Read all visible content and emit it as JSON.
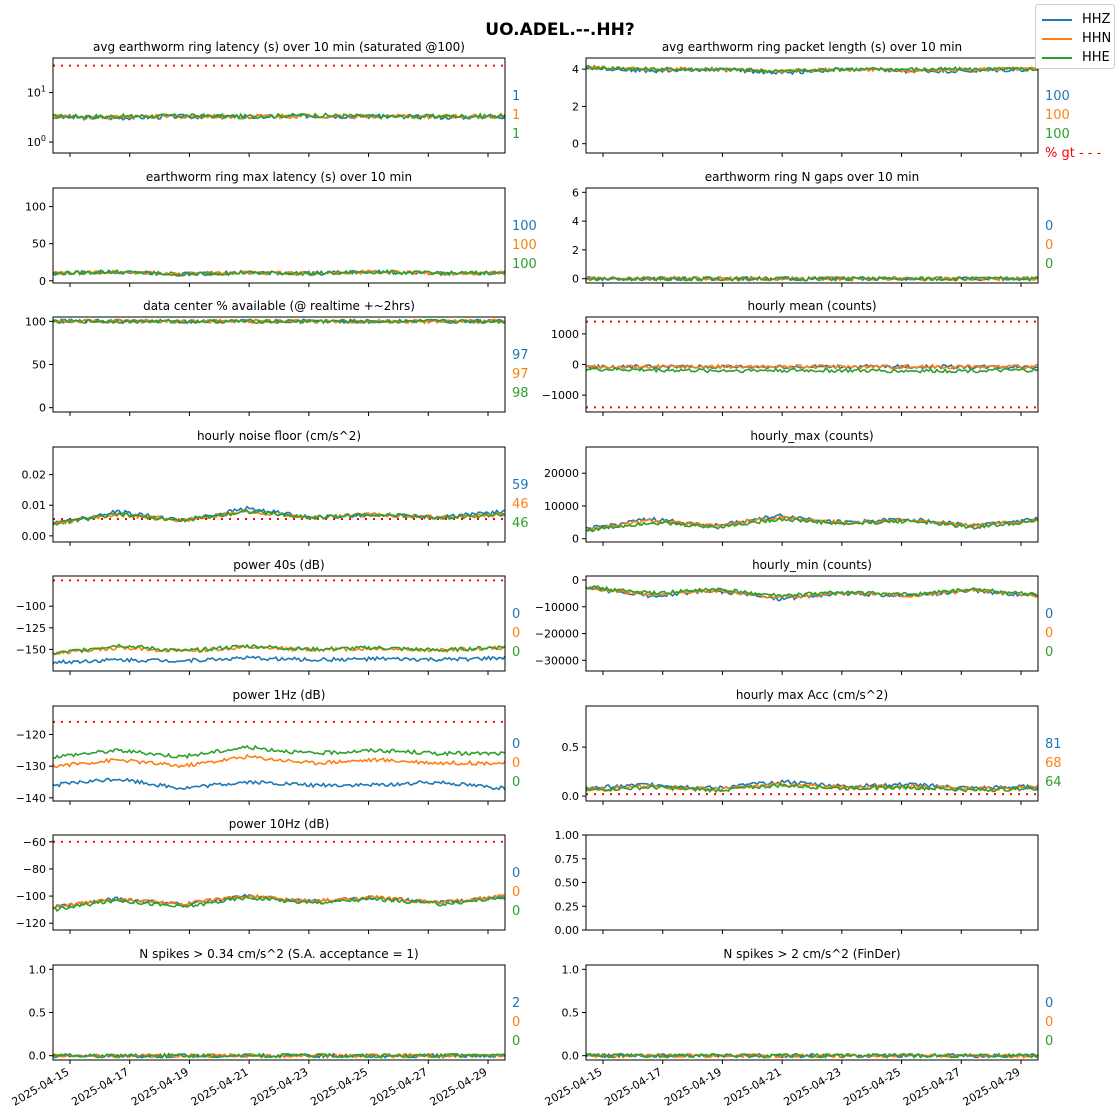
{
  "figure_title": "UO.ADEL.--.HH?",
  "legend": [
    {
      "label": "HHZ",
      "color": "#1f77b4"
    },
    {
      "label": "HHN",
      "color": "#ff7f0e"
    },
    {
      "label": "HHE",
      "color": "#2ca02c"
    }
  ],
  "x_tick_labels": [
    "2025-04-15",
    "2025-04-17",
    "2025-04-19",
    "2025-04-21",
    "2025-04-23",
    "2025-04-25",
    "2025-04-27",
    "2025-04-29"
  ],
  "pct_gt_label": "% gt - - -",
  "chart_data": [
    {
      "type": "line",
      "title": "avg earthworm ring latency (s)   over 10 min (saturated @100)",
      "yscale": "log",
      "ylim": [
        0.6,
        50
      ],
      "yticks": [
        1,
        10
      ],
      "ytick_labels": [
        "10^0",
        "10^1"
      ],
      "threshold": 35,
      "pct": [
        "1",
        "1",
        "1"
      ],
      "series": [
        {
          "name": "HHZ",
          "values": [
            3.2,
            3.1,
            3.3,
            3.2,
            3.4,
            3.3,
            3.2,
            3.3
          ]
        },
        {
          "name": "HHN",
          "values": [
            3.3,
            3.2,
            3.3,
            3.3,
            3.4,
            3.3,
            3.3,
            3.3
          ]
        },
        {
          "name": "HHE",
          "values": [
            3.3,
            3.3,
            3.4,
            3.3,
            3.5,
            3.3,
            3.3,
            3.4
          ]
        }
      ]
    },
    {
      "type": "line",
      "title": "avg earthworm ring packet length (s)   over 10 min",
      "ylim": [
        -0.5,
        4.6
      ],
      "yticks": [
        0,
        2,
        4
      ],
      "ytick_labels": [
        "0",
        "2",
        "4"
      ],
      "threshold": null,
      "pct": [
        "100",
        "100",
        "100"
      ],
      "show_gt": true,
      "series": [
        {
          "name": "HHZ",
          "values": [
            4.1,
            3.9,
            4.0,
            3.8,
            4.0,
            3.9,
            3.9,
            4.0
          ]
        },
        {
          "name": "HHN",
          "values": [
            4.1,
            4.0,
            4.0,
            3.9,
            4.0,
            3.9,
            4.0,
            4.0
          ]
        },
        {
          "name": "HHE",
          "values": [
            4.1,
            4.0,
            4.0,
            3.9,
            4.0,
            4.0,
            4.0,
            4.0
          ]
        }
      ]
    },
    {
      "type": "line",
      "title": "earthworm ring max latency (s)   over 10 min",
      "ylim": [
        -3,
        125
      ],
      "yticks": [
        0,
        50,
        100
      ],
      "ytick_labels": [
        "0",
        "50",
        "100"
      ],
      "threshold": null,
      "pct": [
        "100",
        "100",
        "100"
      ],
      "series": [
        {
          "name": "HHZ",
          "values": [
            10,
            12,
            9,
            11,
            10,
            12,
            10,
            11
          ]
        },
        {
          "name": "HHN",
          "values": [
            10,
            12,
            9,
            11,
            10,
            12,
            10,
            11
          ]
        },
        {
          "name": "HHE",
          "values": [
            10,
            12,
            9,
            11,
            10,
            12,
            10,
            11
          ]
        }
      ]
    },
    {
      "type": "line",
      "title": "earthworm ring N gaps   over 10 min",
      "ylim": [
        -0.3,
        6.3
      ],
      "yticks": [
        0,
        2,
        4,
        6
      ],
      "ytick_labels": [
        "0",
        "2",
        "4",
        "6"
      ],
      "threshold": 0,
      "pct": [
        "0",
        "0",
        "0"
      ],
      "series": [
        {
          "name": "HHZ",
          "values": [
            0,
            0,
            0,
            0,
            0,
            0,
            0,
            0
          ]
        },
        {
          "name": "HHN",
          "values": [
            0,
            0,
            0,
            0,
            0,
            0,
            0,
            0
          ]
        },
        {
          "name": "HHE",
          "values": [
            0,
            0,
            0,
            0,
            0,
            0,
            0,
            0
          ]
        }
      ]
    },
    {
      "type": "line",
      "title": "data center % available (@ realtime +~2hrs)",
      "ylim": [
        -5,
        105
      ],
      "yticks": [
        0,
        50,
        100
      ],
      "ytick_labels": [
        "0",
        "50",
        "100"
      ],
      "threshold": 100,
      "pct": [
        "97",
        "97",
        "98"
      ],
      "series": [
        {
          "name": "HHZ",
          "values": [
            100,
            100,
            100,
            100,
            100,
            100,
            100,
            100
          ]
        },
        {
          "name": "HHN",
          "values": [
            100,
            100,
            100,
            100,
            100,
            100,
            100,
            100
          ]
        },
        {
          "name": "HHE",
          "values": [
            100,
            100,
            100,
            100,
            100,
            100,
            100,
            100
          ]
        }
      ]
    },
    {
      "type": "line",
      "title": "hourly mean (counts)",
      "ylim": [
        -1550,
        1550
      ],
      "yticks": [
        -1000,
        0,
        1000
      ],
      "ytick_labels": [
        "−1000",
        "0",
        "1000"
      ],
      "threshold": 1400,
      "threshold_low": -1400,
      "pct": null,
      "series": [
        {
          "name": "HHZ",
          "values": [
            -80,
            -70,
            -75,
            -70,
            -72,
            -70,
            -75,
            -70
          ]
        },
        {
          "name": "HHN",
          "values": [
            -80,
            -75,
            -70,
            -70,
            -72,
            -72,
            -70,
            -70
          ]
        },
        {
          "name": "HHE",
          "values": [
            -150,
            -180,
            -200,
            -190,
            -200,
            -210,
            -200,
            -190
          ]
        }
      ]
    },
    {
      "type": "line",
      "title": "hourly noise floor (cm/s^2)",
      "ylim": [
        -0.002,
        0.029
      ],
      "yticks": [
        0,
        0.01,
        0.02
      ],
      "ytick_labels": [
        "0.00",
        "0.01",
        "0.02"
      ],
      "threshold": 0.0055,
      "pct": [
        "59",
        "46",
        "46"
      ],
      "series": [
        {
          "name": "HHZ",
          "values": [
            0.004,
            0.008,
            0.005,
            0.009,
            0.006,
            0.007,
            0.006,
            0.008
          ]
        },
        {
          "name": "HHN",
          "values": [
            0.004,
            0.007,
            0.005,
            0.008,
            0.006,
            0.007,
            0.006,
            0.007
          ]
        },
        {
          "name": "HHE",
          "values": [
            0.004,
            0.007,
            0.005,
            0.008,
            0.006,
            0.007,
            0.006,
            0.007
          ]
        }
      ]
    },
    {
      "type": "line",
      "title": "hourly_max (counts)",
      "ylim": [
        -1000,
        28000
      ],
      "yticks": [
        0,
        10000,
        20000
      ],
      "ytick_labels": [
        "0",
        "10000",
        "20000"
      ],
      "threshold": null,
      "pct": null,
      "series": [
        {
          "name": "HHZ",
          "values": [
            3000,
            6000,
            4000,
            7000,
            5000,
            6000,
            4000,
            6000
          ]
        },
        {
          "name": "HHN",
          "values": [
            2800,
            5500,
            3800,
            6500,
            4800,
            5800,
            3800,
            5800
          ]
        },
        {
          "name": "HHE",
          "values": [
            2500,
            5000,
            3500,
            6000,
            4500,
            5500,
            3500,
            5500
          ]
        }
      ]
    },
    {
      "type": "line",
      "title": "power 40s (dB)",
      "ylim": [
        -175,
        -65
      ],
      "yticks": [
        -150,
        -125,
        -100
      ],
      "ytick_labels": [
        "−150",
        "−125",
        "−100"
      ],
      "threshold": -70,
      "pct": [
        "0",
        "0",
        "0"
      ],
      "series": [
        {
          "name": "HHZ",
          "values": [
            -165,
            -162,
            -163,
            -160,
            -162,
            -161,
            -162,
            -160
          ]
        },
        {
          "name": "HHN",
          "values": [
            -155,
            -148,
            -152,
            -148,
            -150,
            -149,
            -151,
            -148
          ]
        },
        {
          "name": "HHE",
          "values": [
            -155,
            -145,
            -152,
            -146,
            -150,
            -148,
            -151,
            -147
          ]
        }
      ]
    },
    {
      "type": "line",
      "title": "hourly_min (counts)",
      "ylim": [
        -34000,
        1500
      ],
      "yticks": [
        -30000,
        -20000,
        -10000,
        0
      ],
      "ytick_labels": [
        "−30000",
        "−20000",
        "−10000",
        "0"
      ],
      "threshold": null,
      "pct": [
        "0",
        "0",
        "0"
      ],
      "series": [
        {
          "name": "HHZ",
          "values": [
            -3000,
            -6000,
            -4000,
            -7000,
            -5000,
            -6000,
            -4000,
            -6000
          ]
        },
        {
          "name": "HHN",
          "values": [
            -2800,
            -5500,
            -3800,
            -6500,
            -4800,
            -5800,
            -3800,
            -5800
          ]
        },
        {
          "name": "HHE",
          "values": [
            -2500,
            -5000,
            -3500,
            -6000,
            -4500,
            -5500,
            -3500,
            -5500
          ]
        }
      ]
    },
    {
      "type": "line",
      "title": "power 1Hz (dB)",
      "ylim": [
        -141,
        -111
      ],
      "yticks": [
        -140,
        -130,
        -120
      ],
      "ytick_labels": [
        "−140",
        "−130",
        "−120"
      ],
      "threshold": -116,
      "pct": [
        "0",
        "0",
        "0"
      ],
      "series": [
        {
          "name": "HHZ",
          "values": [
            -136,
            -134,
            -137,
            -135,
            -136,
            -136,
            -135,
            -137
          ]
        },
        {
          "name": "HHN",
          "values": [
            -130,
            -128,
            -130,
            -127,
            -129,
            -128,
            -129,
            -129
          ]
        },
        {
          "name": "HHE",
          "values": [
            -127,
            -125,
            -127,
            -124,
            -126,
            -125,
            -126,
            -126
          ]
        }
      ]
    },
    {
      "type": "line",
      "title": "hourly max Acc (cm/s^2)",
      "ylim": [
        -0.05,
        0.92
      ],
      "yticks": [
        0,
        0.5
      ],
      "ytick_labels": [
        "0.0",
        "0.5"
      ],
      "threshold": 0.02,
      "pct": [
        "81",
        "68",
        "64"
      ],
      "series": [
        {
          "name": "HHZ",
          "values": [
            0.08,
            0.12,
            0.08,
            0.15,
            0.1,
            0.12,
            0.08,
            0.1
          ]
        },
        {
          "name": "HHN",
          "values": [
            0.07,
            0.1,
            0.07,
            0.12,
            0.09,
            0.1,
            0.07,
            0.09
          ]
        },
        {
          "name": "HHE",
          "values": [
            0.06,
            0.09,
            0.06,
            0.11,
            0.08,
            0.09,
            0.06,
            0.08
          ]
        }
      ]
    },
    {
      "type": "line",
      "title": "power 10Hz (dB)",
      "ylim": [
        -125,
        -55
      ],
      "yticks": [
        -120,
        -100,
        -80,
        -60
      ],
      "ytick_labels": [
        "−120",
        "−100",
        "−80",
        "−60"
      ],
      "threshold": -60,
      "pct": [
        "0",
        "0",
        "0"
      ],
      "series": [
        {
          "name": "HHZ",
          "values": [
            -108,
            -102,
            -106,
            -100,
            -104,
            -101,
            -105,
            -100
          ]
        },
        {
          "name": "HHN",
          "values": [
            -108,
            -102,
            -106,
            -100,
            -104,
            -101,
            -105,
            -100
          ]
        },
        {
          "name": "HHE",
          "values": [
            -110,
            -103,
            -108,
            -101,
            -105,
            -102,
            -106,
            -101
          ]
        }
      ]
    },
    {
      "type": "empty",
      "title": "",
      "ylim": [
        0,
        1
      ],
      "yticks": [
        0,
        0.25,
        0.5,
        0.75,
        1
      ],
      "ytick_labels": [
        "0.00",
        "0.25",
        "0.50",
        "0.75",
        "1.00"
      ],
      "threshold": null,
      "pct": null,
      "series": []
    },
    {
      "type": "line",
      "title": "N spikes > 0.34 cm/s^2 (S.A. acceptance = 1)",
      "ylim": [
        -0.05,
        1.05
      ],
      "yticks": [
        0,
        0.5,
        1
      ],
      "ytick_labels": [
        "0.0",
        "0.5",
        "1.0"
      ],
      "threshold": 0,
      "pct": [
        "2",
        "0",
        "0"
      ],
      "series": [
        {
          "name": "HHZ",
          "values": [
            0,
            0,
            0,
            0,
            0,
            0,
            0,
            0
          ]
        },
        {
          "name": "HHN",
          "values": [
            0,
            0,
            0,
            0,
            0,
            0,
            0,
            0
          ]
        },
        {
          "name": "HHE",
          "values": [
            0,
            0,
            0,
            0,
            0,
            0,
            0,
            0
          ]
        }
      ]
    },
    {
      "type": "line",
      "title": "N spikes > 2 cm/s^2 (FinDer)",
      "ylim": [
        -0.05,
        1.05
      ],
      "yticks": [
        0,
        0.5,
        1
      ],
      "ytick_labels": [
        "0.0",
        "0.5",
        "1.0"
      ],
      "threshold": 0,
      "pct": [
        "0",
        "0",
        "0"
      ],
      "series": [
        {
          "name": "HHZ",
          "values": [
            0,
            0,
            0,
            0,
            0,
            0,
            0,
            0
          ]
        },
        {
          "name": "HHN",
          "values": [
            0,
            0,
            0,
            0,
            0,
            0,
            0,
            0
          ]
        },
        {
          "name": "HHE",
          "values": [
            0,
            0,
            0,
            0,
            0,
            0,
            0,
            0
          ]
        }
      ]
    }
  ]
}
